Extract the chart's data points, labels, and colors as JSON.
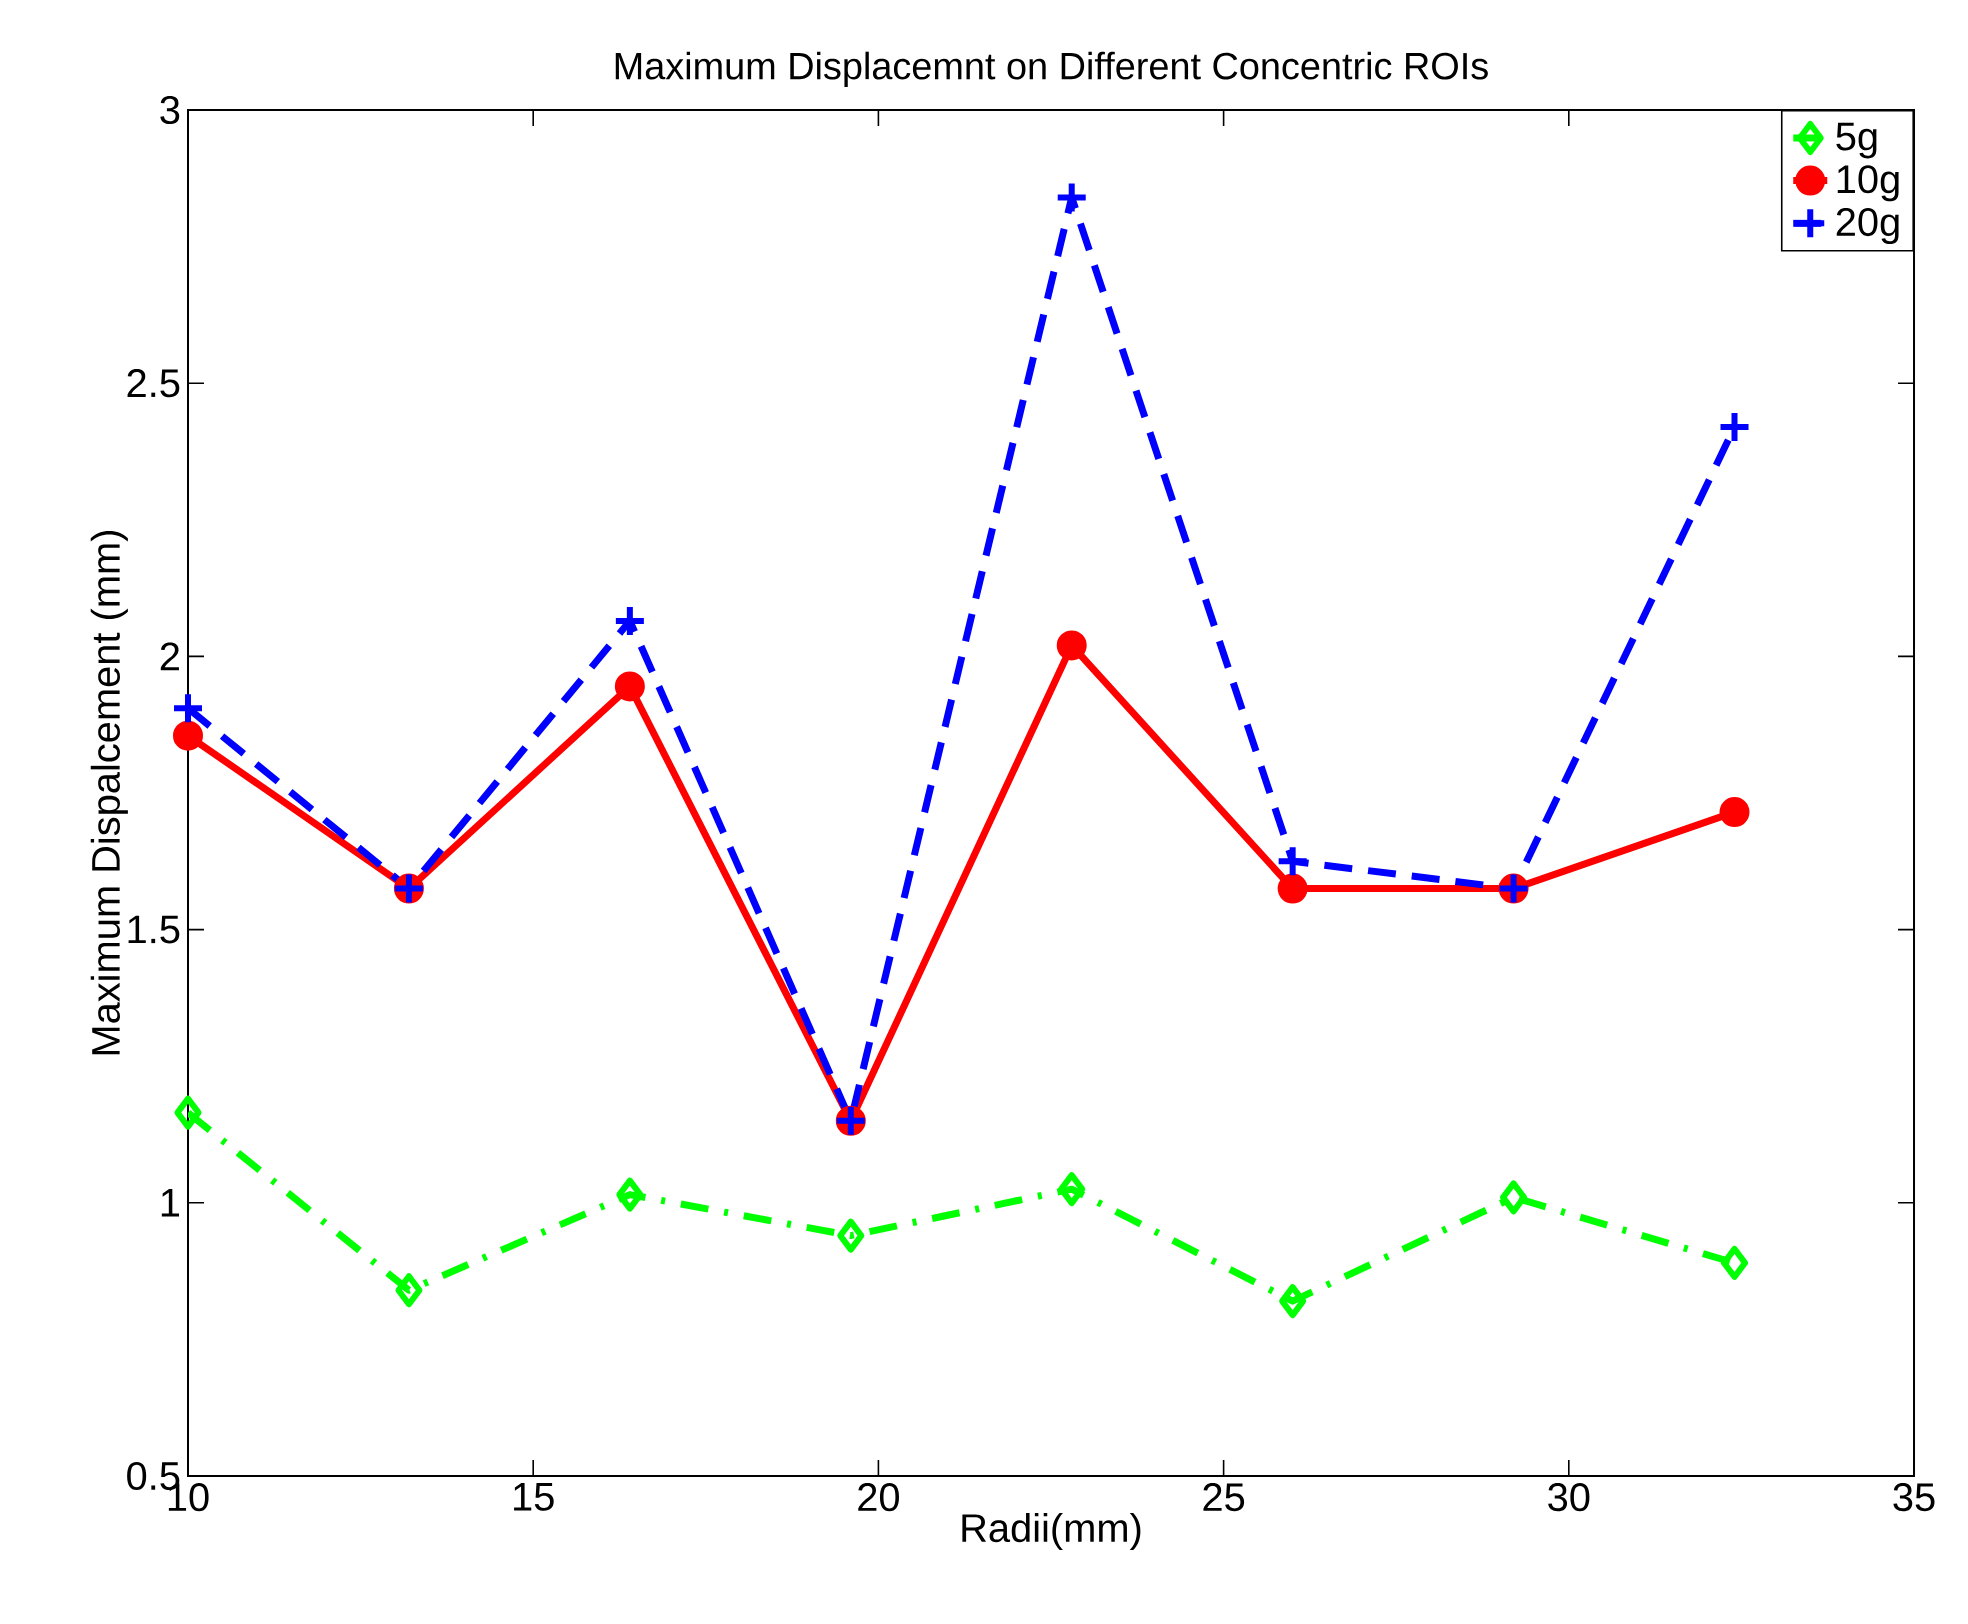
{
  "chart_data": {
    "type": "line",
    "title": "Maximum Displacemnt on Different Concentric ROIs",
    "xlabel": "Radii(mm)",
    "ylabel": "Maximum Dispalcement (mm)",
    "x": [
      10,
      13.2,
      16.4,
      19.6,
      22.8,
      26.0,
      29.2,
      32.4
    ],
    "series": [
      {
        "name": "5g",
        "color": "#00ff00",
        "marker": "diamond",
        "line_style": "dashdot",
        "values": [
          1.165,
          0.84,
          1.015,
          0.94,
          1.025,
          0.82,
          1.01,
          0.89
        ]
      },
      {
        "name": "10g",
        "color": "#ff0000",
        "marker": "circle",
        "line_style": "solid",
        "values": [
          1.855,
          1.575,
          1.945,
          1.15,
          2.02,
          1.575,
          1.575,
          1.715
        ]
      },
      {
        "name": "20g",
        "color": "#0000ff",
        "marker": "plus",
        "line_style": "dashed",
        "values": [
          1.905,
          1.575,
          2.065,
          1.15,
          2.84,
          1.625,
          1.575,
          2.42
        ]
      }
    ],
    "xlim": [
      10,
      35
    ],
    "xticks": [
      10,
      15,
      20,
      25,
      30,
      35
    ],
    "ylim": [
      0.5,
      3
    ],
    "yticks": [
      0.5,
      1,
      1.5,
      2,
      2.5,
      3
    ],
    "grid": false,
    "legend": "top right"
  }
}
